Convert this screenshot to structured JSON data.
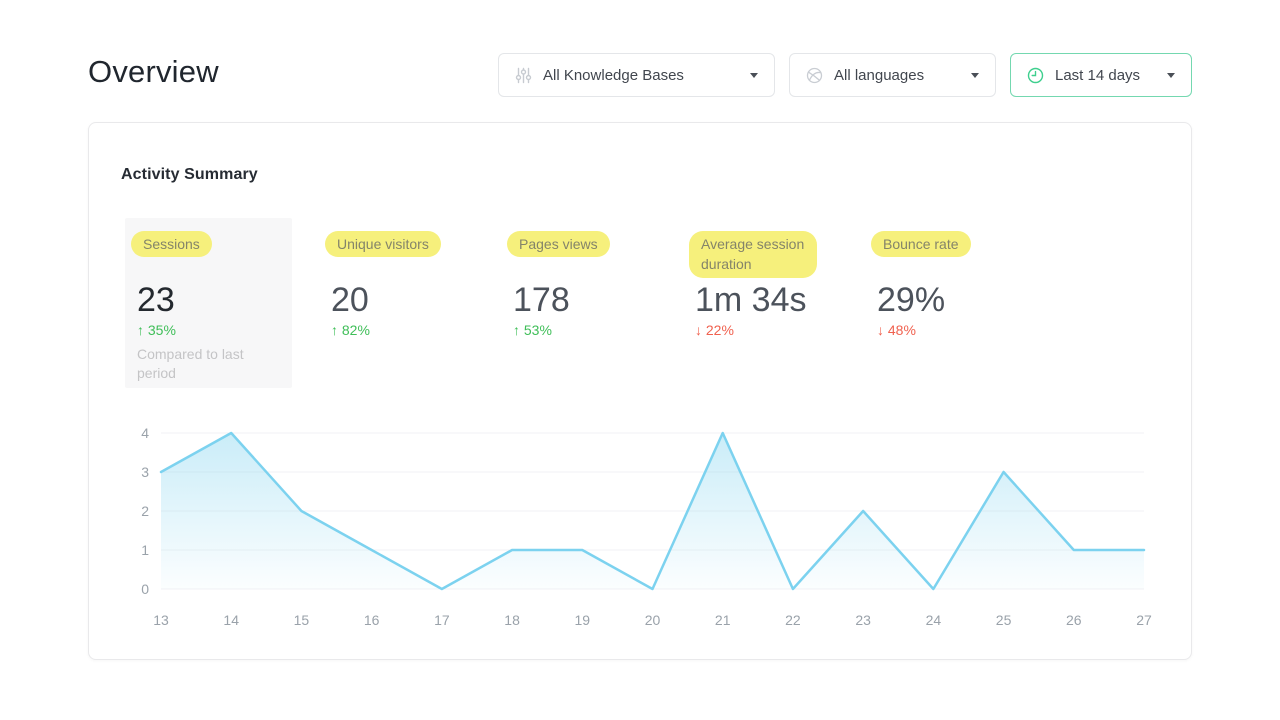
{
  "page": {
    "title": "Overview"
  },
  "filters": {
    "knowledge_bases": {
      "label": "All Knowledge Bases",
      "icon": "sliders-icon"
    },
    "languages": {
      "label": "All languages",
      "icon": "globe-icon"
    },
    "date_range": {
      "label": "Last 14 days",
      "icon": "clock-icon",
      "accent_color": "#3ecf8e"
    }
  },
  "card": {
    "heading": "Activity Summary",
    "metrics": [
      {
        "label": "Sessions",
        "value": "23",
        "arrow": "↑",
        "delta": "35%",
        "direction": "up",
        "note": "Compared to last period"
      },
      {
        "label": "Unique visitors",
        "value": "20",
        "arrow": "↑",
        "delta": "82%",
        "direction": "up"
      },
      {
        "label": "Pages views",
        "value": "178",
        "arrow": "↑",
        "delta": "53%",
        "direction": "up"
      },
      {
        "label": "Average session duration",
        "value": "1m 34s",
        "arrow": "↓",
        "delta": "22%",
        "direction": "down"
      },
      {
        "label": "Bounce rate",
        "value": "29%",
        "arrow": "↓",
        "delta": "48%",
        "direction": "down"
      }
    ],
    "highlight_color": "#f6f07c",
    "up_color": "#3fbe58",
    "down_color": "#f0614f"
  },
  "chart_data": {
    "type": "area",
    "x": [
      13,
      14,
      15,
      16,
      17,
      18,
      19,
      20,
      21,
      22,
      23,
      24,
      25,
      26,
      27
    ],
    "values": [
      3,
      4,
      2,
      1,
      0,
      1,
      1,
      0,
      4,
      0,
      2,
      0,
      3,
      1,
      1
    ],
    "title": "",
    "xlabel": "",
    "ylabel": "",
    "ylim": [
      0,
      4
    ],
    "yticks": [
      0,
      1,
      2,
      3,
      4
    ],
    "grid": true,
    "legend": "none",
    "line_color": "#7cd2ef",
    "fill_top_color": "#89d6f0",
    "axis_label_color": "#9aa2aa",
    "gridline_color": "#f2f2f4"
  }
}
